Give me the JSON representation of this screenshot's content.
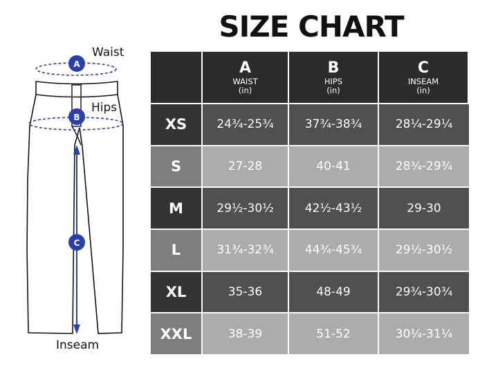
{
  "title": "SIZE CHART",
  "diagram": {
    "waist_label": "Waist",
    "hips_label": "Hips",
    "inseam_label": "Inseam",
    "markers": [
      "A",
      "B",
      "C"
    ],
    "marker_color": "#2b3fa8"
  },
  "columns": [
    {
      "letter": "",
      "name": "",
      "unit": ""
    },
    {
      "letter": "A",
      "name": "WAIST",
      "unit": "(in)"
    },
    {
      "letter": "B",
      "name": "HIPS",
      "unit": "(in)"
    },
    {
      "letter": "C",
      "name": "INSEAM",
      "unit": "(in)"
    }
  ],
  "rows": [
    {
      "size": "XS",
      "waist": "24¾-25¾",
      "hips": "37¾-38¾",
      "inseam": "28¼-29¼"
    },
    {
      "size": "S",
      "waist": "27-28",
      "hips": "40-41",
      "inseam": "28¾-29¾"
    },
    {
      "size": "M",
      "waist": "29½-30½",
      "hips": "42½-43½",
      "inseam": "29-30"
    },
    {
      "size": "L",
      "waist": "31¾-32¾",
      "hips": "44¾-45¾",
      "inseam": "29½-30½"
    },
    {
      "size": "XL",
      "waist": "35-36",
      "hips": "48-49",
      "inseam": "29¾-30¾"
    },
    {
      "size": "XXL",
      "waist": "38-39",
      "hips": "51-52",
      "inseam": "30¼-31¼"
    }
  ]
}
